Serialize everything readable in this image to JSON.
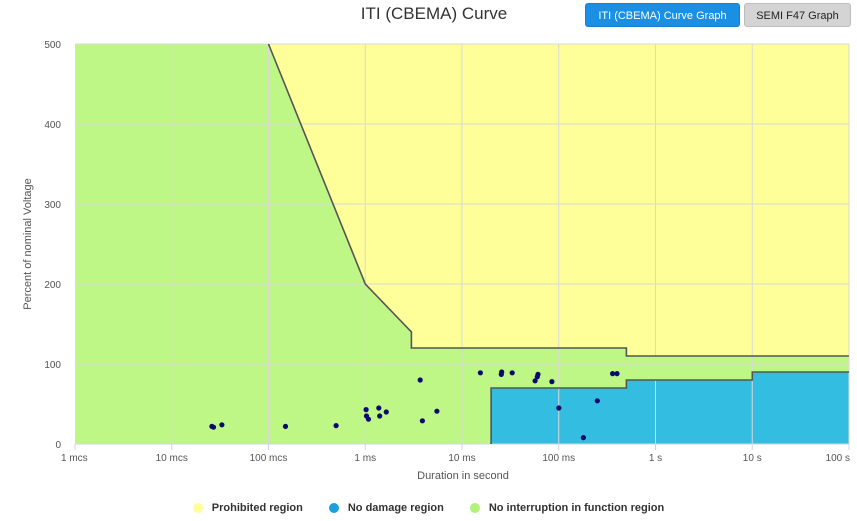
{
  "header": {
    "title": "ITI (CBEMA) Curve",
    "button_iti": "ITI (CBEMA) Curve Graph",
    "button_semi": "SEMI F47 Graph"
  },
  "chart_data": {
    "type": "area",
    "title": "ITI (CBEMA) Curve",
    "xlabel": "Duration in second",
    "ylabel": "Percent of nominal Voltage",
    "xscale": "log",
    "xlim": [
      1e-06,
      100
    ],
    "ylim": [
      0,
      500
    ],
    "grid": true,
    "legend_position": "bottom",
    "x_ticks": [
      {
        "value": 1e-06,
        "label": "1 mcs"
      },
      {
        "value": 1e-05,
        "label": "10 mcs"
      },
      {
        "value": 0.0001,
        "label": "100 mcs"
      },
      {
        "value": 0.001,
        "label": "1 ms"
      },
      {
        "value": 0.01,
        "label": "10 ms"
      },
      {
        "value": 0.1,
        "label": "100 ms"
      },
      {
        "value": 1,
        "label": "1 s"
      },
      {
        "value": 10,
        "label": "10 s"
      },
      {
        "value": 100,
        "label": "100 s"
      }
    ],
    "y_ticks": [
      0,
      100,
      200,
      300,
      400,
      500
    ],
    "regions": [
      {
        "name": "Prohibited region",
        "color": "#ffff99",
        "boundary": [
          [
            0.0001,
            500
          ],
          [
            0.001,
            200
          ],
          [
            0.003,
            140
          ],
          [
            0.003,
            120
          ],
          [
            0.5,
            120
          ],
          [
            0.5,
            110
          ],
          [
            100,
            110
          ]
        ]
      },
      {
        "name": "No damage region",
        "color": "#33bde0",
        "boundary": [
          [
            0.02,
            0
          ],
          [
            0.02,
            70
          ],
          [
            0.5,
            70
          ],
          [
            0.5,
            80
          ],
          [
            10,
            80
          ],
          [
            10,
            90
          ],
          [
            100,
            90
          ]
        ]
      },
      {
        "name": "No interruption in function region",
        "color": "#bff786",
        "boundary": []
      }
    ],
    "line_color": "#555555",
    "point_color": "#0a0a6e",
    "points": [
      [
        2.6e-05,
        22
      ],
      [
        2.7e-05,
        21
      ],
      [
        3.3e-05,
        24
      ],
      [
        0.00015,
        22
      ],
      [
        0.0005,
        23
      ],
      [
        0.00102,
        43
      ],
      [
        0.00103,
        35
      ],
      [
        0.00108,
        31
      ],
      [
        0.00138,
        45
      ],
      [
        0.00141,
        35
      ],
      [
        0.00165,
        40
      ],
      [
        0.0037,
        80
      ],
      [
        0.0039,
        29
      ],
      [
        0.0055,
        41
      ],
      [
        0.0155,
        89
      ],
      [
        0.0255,
        87
      ],
      [
        0.0257,
        90
      ],
      [
        0.033,
        89
      ],
      [
        0.057,
        79
      ],
      [
        0.06,
        84
      ],
      [
        0.061,
        87
      ],
      [
        0.085,
        78
      ],
      [
        0.1,
        45
      ],
      [
        0.18,
        8
      ],
      [
        0.25,
        54
      ],
      [
        0.36,
        88
      ],
      [
        0.4,
        88
      ]
    ]
  },
  "legend": [
    {
      "label": "Prohibited region",
      "color": "#ffff99"
    },
    {
      "label": "No damage region",
      "color": "#1a9fe0"
    },
    {
      "label": "No interruption in function region",
      "color": "#b3f27a"
    }
  ]
}
